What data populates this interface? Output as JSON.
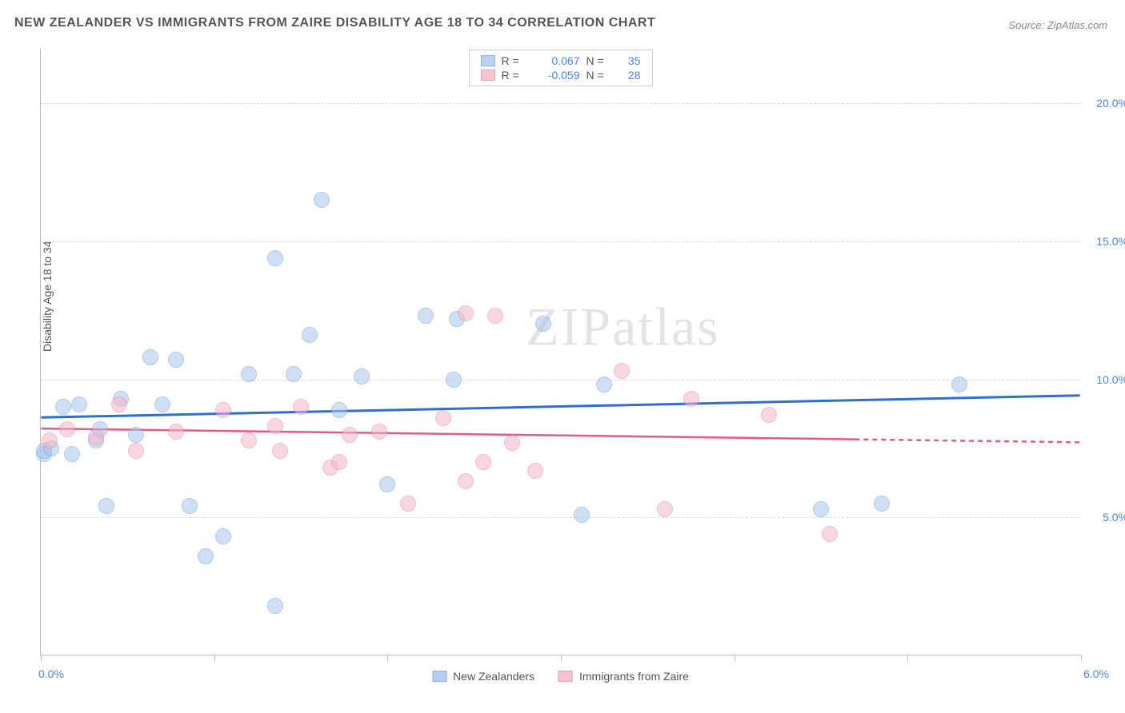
{
  "title": "NEW ZEALANDER VS IMMIGRANTS FROM ZAIRE DISABILITY AGE 18 TO 34 CORRELATION CHART",
  "source": "Source: ZipAtlas.com",
  "watermark": "ZIPatlas",
  "y_axis_label": "Disability Age 18 to 34",
  "chart": {
    "type": "scatter",
    "xlim": [
      0,
      6
    ],
    "ylim": [
      0,
      22
    ],
    "x_ticks": [
      0,
      1,
      2,
      3,
      4,
      5,
      6
    ],
    "x_tick_labels_shown": {
      "0": "0.0%",
      "6": "6.0%"
    },
    "y_gridlines": [
      5,
      10,
      15,
      20
    ],
    "y_tick_labels": {
      "5": "5.0%",
      "10": "10.0%",
      "15": "15.0%",
      "20": "20.0%"
    },
    "background_color": "#ffffff",
    "grid_color": "#dcdcdc",
    "axis_color": "#bdbdbd",
    "point_radius": 10,
    "series": [
      {
        "name": "New Zealanders",
        "fill": "#a8c8ec",
        "stroke": "#6fa3dd",
        "fill_opacity": 0.55,
        "r_value": "0.067",
        "n_value": "35",
        "trend": {
          "y_at_xmin": 8.6,
          "y_at_xmax": 9.4,
          "color": "#2f6fd0",
          "width": 3,
          "dash": null
        },
        "points": [
          [
            0.02,
            7.3
          ],
          [
            0.02,
            7.4
          ],
          [
            0.06,
            7.5
          ],
          [
            0.13,
            9.0
          ],
          [
            0.18,
            7.3
          ],
          [
            0.22,
            9.1
          ],
          [
            0.32,
            7.8
          ],
          [
            0.34,
            8.2
          ],
          [
            0.38,
            5.4
          ],
          [
            0.46,
            9.3
          ],
          [
            0.55,
            8.0
          ],
          [
            0.63,
            10.8
          ],
          [
            0.7,
            9.1
          ],
          [
            0.78,
            10.7
          ],
          [
            0.86,
            5.4
          ],
          [
            0.95,
            3.6
          ],
          [
            1.05,
            4.3
          ],
          [
            1.2,
            10.2
          ],
          [
            1.35,
            14.4
          ],
          [
            1.35,
            1.8
          ],
          [
            1.46,
            10.2
          ],
          [
            1.55,
            11.6
          ],
          [
            1.72,
            8.9
          ],
          [
            1.62,
            16.5
          ],
          [
            1.85,
            10.1
          ],
          [
            2.0,
            6.2
          ],
          [
            2.22,
            12.3
          ],
          [
            2.38,
            10.0
          ],
          [
            2.4,
            12.2
          ],
          [
            2.9,
            12.0
          ],
          [
            3.25,
            9.8
          ],
          [
            3.12,
            5.1
          ],
          [
            4.5,
            5.3
          ],
          [
            4.85,
            5.5
          ],
          [
            5.3,
            9.8
          ]
        ]
      },
      {
        "name": "Immigrants from Zaire",
        "fill": "#f4b8c8",
        "stroke": "#e88aa5",
        "fill_opacity": 0.55,
        "r_value": "-0.059",
        "n_value": "28",
        "trend": {
          "y_at_xmin": 8.2,
          "y_at_xmax": 7.7,
          "color": "#e35a85",
          "width": 2.5,
          "dash_after_x": 4.7
        },
        "points": [
          [
            0.05,
            7.8
          ],
          [
            0.15,
            8.2
          ],
          [
            0.32,
            7.9
          ],
          [
            0.45,
            9.1
          ],
          [
            0.55,
            7.4
          ],
          [
            0.78,
            8.1
          ],
          [
            1.05,
            8.9
          ],
          [
            1.2,
            7.8
          ],
          [
            1.35,
            8.3
          ],
          [
            1.38,
            7.4
          ],
          [
            1.5,
            9.0
          ],
          [
            1.67,
            6.8
          ],
          [
            1.72,
            7.0
          ],
          [
            1.78,
            8.0
          ],
          [
            1.95,
            8.1
          ],
          [
            2.12,
            5.5
          ],
          [
            2.32,
            8.6
          ],
          [
            2.45,
            12.4
          ],
          [
            2.45,
            6.3
          ],
          [
            2.55,
            7.0
          ],
          [
            2.62,
            12.3
          ],
          [
            2.72,
            7.7
          ],
          [
            2.85,
            6.7
          ],
          [
            3.35,
            10.3
          ],
          [
            3.6,
            5.3
          ],
          [
            3.75,
            9.3
          ],
          [
            4.2,
            8.7
          ],
          [
            4.55,
            4.4
          ]
        ]
      }
    ]
  },
  "legend_top": {
    "r_label": "R =",
    "n_label": "N ="
  },
  "legend_bottom": {
    "items": [
      "New Zealanders",
      "Immigrants from Zaire"
    ]
  }
}
